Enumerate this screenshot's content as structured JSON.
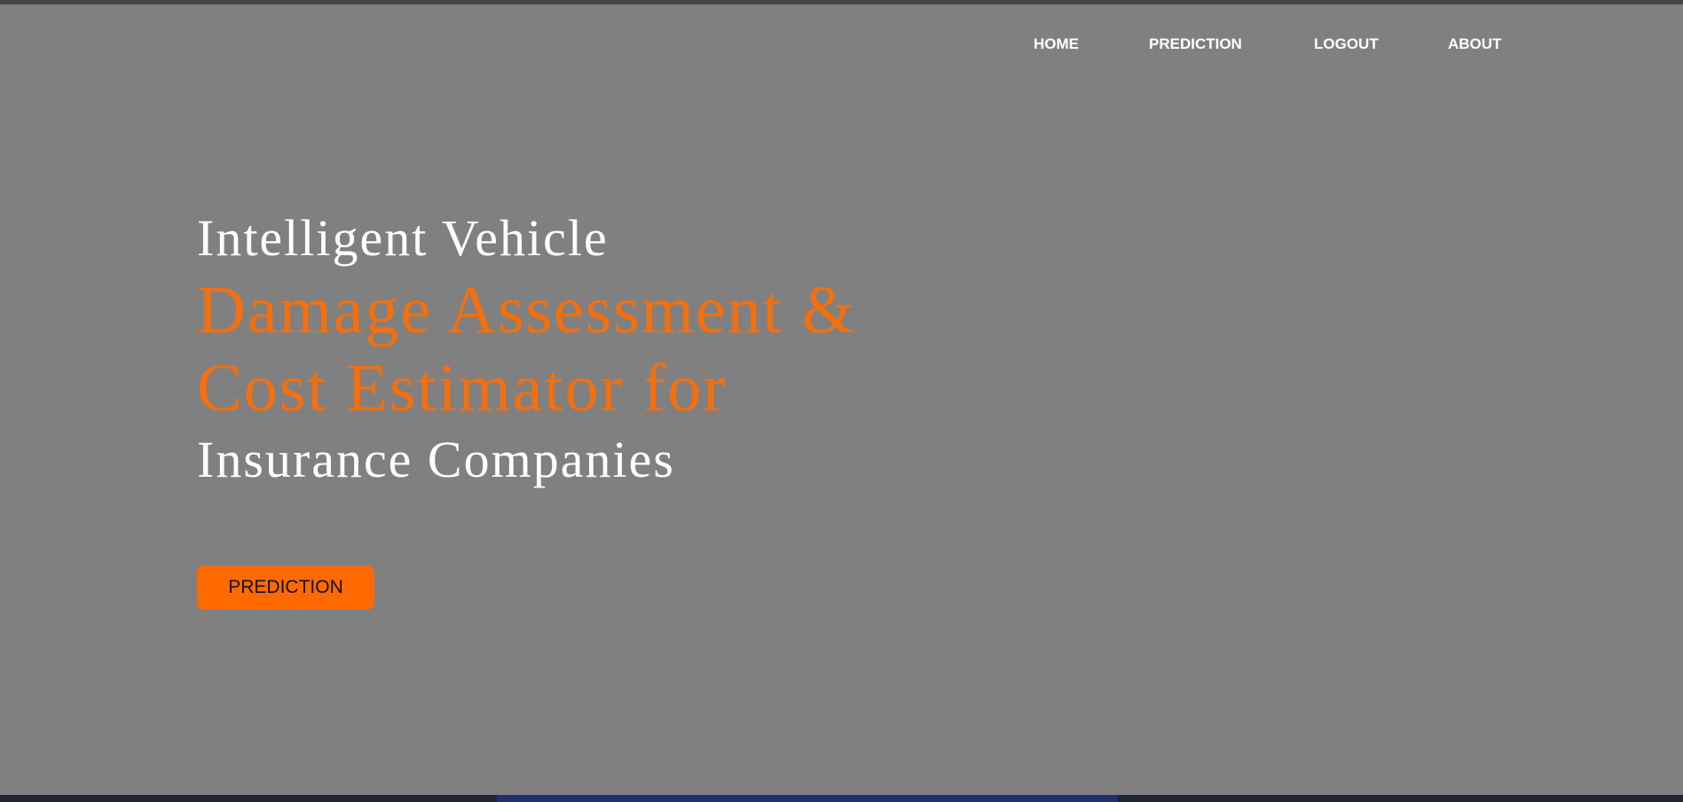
{
  "nav": {
    "home": "HOME",
    "prediction": "PREDICTION",
    "logout": "LOGOUT",
    "about": "ABOUT"
  },
  "hero": {
    "line1": "Intelligent Vehicle",
    "line2": "Damage Assessment &",
    "line3": "Cost Estimator for",
    "line4": "Insurance Companies"
  },
  "cta": {
    "label": "PREDICTION"
  },
  "colors": {
    "background": "#808080",
    "accent": "#f56f0d",
    "button": "#ff6a00",
    "text_light": "#ffffff"
  }
}
